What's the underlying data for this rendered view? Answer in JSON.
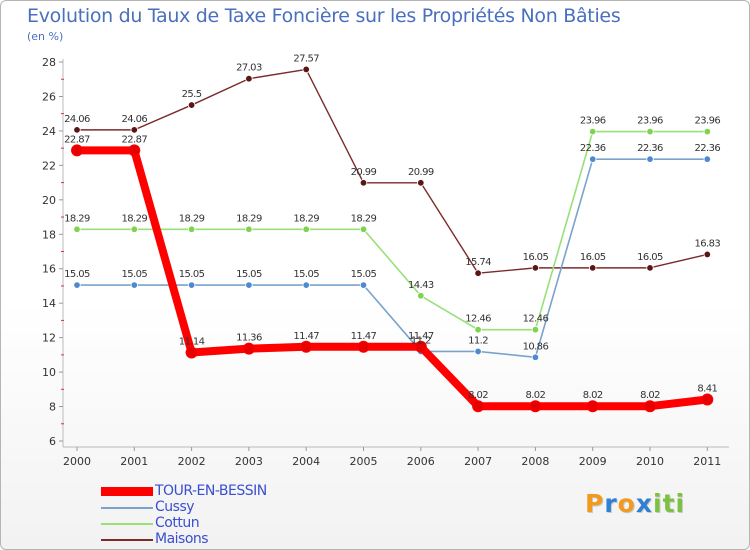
{
  "chart_data": {
    "type": "line",
    "title": "Evolution du Taux de Taxe Foncière sur les Propriétés Non Bâties",
    "subtitle": "(en %)",
    "xlabel": "",
    "ylabel": "",
    "categories": [
      "2000",
      "2001",
      "2002",
      "2003",
      "2004",
      "2005",
      "2006",
      "2007",
      "2008",
      "2009",
      "2010",
      "2011"
    ],
    "yticks": [
      6,
      8,
      10,
      12,
      14,
      16,
      18,
      20,
      22,
      24,
      26,
      28
    ],
    "ylim": [
      6,
      28
    ],
    "grid": false,
    "legend_position": "bottom-left",
    "series": [
      {
        "name": "Maisons",
        "color": "#7b2b2b",
        "markerColor": "#5a1616",
        "width": 1.4,
        "labels": [
          "24.06",
          "24.06",
          "25.5",
          "27.03",
          "27.57",
          "20.99",
          "20.99",
          "15.74",
          "16.05",
          "16.05",
          "16.05",
          "16.83"
        ],
        "values": [
          24.06,
          24.06,
          25.5,
          27.03,
          27.57,
          20.99,
          20.99,
          15.74,
          16.05,
          16.05,
          16.05,
          16.83
        ]
      },
      {
        "name": "Cottun",
        "color": "#99e07a",
        "markerColor": "#7ed44e",
        "width": 1.6,
        "labels": [
          "18.29",
          "18.29",
          "18.29",
          "18.29",
          "18.29",
          "18.29",
          "14.43",
          "12.46",
          "12.46",
          "23.96",
          "23.96",
          "23.96"
        ],
        "values": [
          18.29,
          18.29,
          18.29,
          18.29,
          18.29,
          18.29,
          14.43,
          12.46,
          12.46,
          23.96,
          23.96,
          23.96
        ]
      },
      {
        "name": "Cussy",
        "color": "#7aa3cc",
        "markerColor": "#4f8ad0",
        "width": 1.6,
        "labels": [
          "15.05",
          "15.05",
          "15.05",
          "15.05",
          "15.05",
          "15.05",
          "11.2",
          "11.2",
          "10.86",
          "22.36",
          "22.36",
          "22.36"
        ],
        "values": [
          15.05,
          15.05,
          15.05,
          15.05,
          15.05,
          15.05,
          11.2,
          11.2,
          10.86,
          22.36,
          22.36,
          22.36
        ]
      },
      {
        "name": "TOUR-EN-BESSIN",
        "color": "#ff0000",
        "markerColor": "#e80000",
        "width": 8,
        "labels": [
          "22.87",
          "22.87",
          "11.14",
          "11.36",
          "11.47",
          "11.47",
          "11.47",
          "8.02",
          "8.02",
          "8.02",
          "8.02",
          "8.41"
        ],
        "values": [
          22.87,
          22.87,
          11.14,
          11.36,
          11.47,
          11.47,
          11.47,
          8.02,
          8.02,
          8.02,
          8.02,
          8.41
        ]
      }
    ]
  },
  "legend": [
    {
      "label": "TOUR-EN-BESSIN",
      "color": "#ff0000",
      "thickness": 9
    },
    {
      "label": "Cussy",
      "color": "#7aa3cc",
      "thickness": 2
    },
    {
      "label": "Cottun",
      "color": "#99e07a",
      "thickness": 2
    },
    {
      "label": "Maisons",
      "color": "#7b2b2b",
      "thickness": 2
    }
  ],
  "logo": {
    "text": "Proxiti",
    "letters": [
      "P",
      "r",
      "o",
      "x",
      "i",
      "t",
      "i"
    ],
    "colors": [
      "#f29a1f",
      "#2f7fd3",
      "#f29a1f",
      "#2f7fd3",
      "#7cc142",
      "#7cc142",
      "#7cc142"
    ]
  }
}
